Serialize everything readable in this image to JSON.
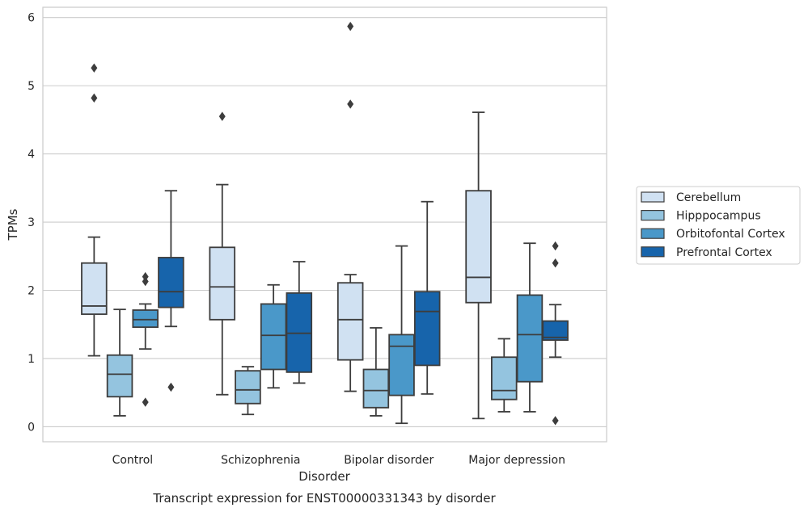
{
  "chart_data": {
    "type": "box",
    "xlabel": "Disorder",
    "ylabel": "TPMs",
    "caption": "Transcript expression for ENST00000331343 by disorder",
    "ylim": [
      -0.22,
      6.15
    ],
    "yticks": [
      0,
      1,
      2,
      3,
      4,
      5,
      6
    ],
    "grid": true,
    "legend_position": "right",
    "categories": [
      "Control",
      "Schizophrenia",
      "Bipolar disorder",
      "Major depression"
    ],
    "series": [
      {
        "name": "Cerebellum",
        "color": "#d0e1f2",
        "boxes": [
          {
            "whisker_low": 1.04,
            "q1": 1.65,
            "median": 1.77,
            "q3": 2.4,
            "whisker_high": 2.78,
            "outliers": [
              4.82,
              5.26
            ]
          },
          {
            "whisker_low": 0.47,
            "q1": 1.57,
            "median": 2.05,
            "q3": 2.63,
            "whisker_high": 3.55,
            "outliers": [
              4.55
            ]
          },
          {
            "whisker_low": 0.52,
            "q1": 0.98,
            "median": 1.57,
            "q3": 2.11,
            "whisker_high": 2.23,
            "outliers": [
              4.73,
              5.87
            ]
          },
          {
            "whisker_low": 0.12,
            "q1": 1.82,
            "median": 2.19,
            "q3": 3.46,
            "whisker_high": 4.61,
            "outliers": []
          }
        ]
      },
      {
        "name": "Hipppocampus",
        "color": "#94c4df",
        "boxes": [
          {
            "whisker_low": 0.16,
            "q1": 0.44,
            "median": 0.77,
            "q3": 1.05,
            "whisker_high": 1.72,
            "outliers": []
          },
          {
            "whisker_low": 0.18,
            "q1": 0.34,
            "median": 0.54,
            "q3": 0.82,
            "whisker_high": 0.88,
            "outliers": []
          },
          {
            "whisker_low": 0.16,
            "q1": 0.28,
            "median": 0.53,
            "q3": 0.84,
            "whisker_high": 1.45,
            "outliers": []
          },
          {
            "whisker_low": 0.22,
            "q1": 0.4,
            "median": 0.53,
            "q3": 1.02,
            "whisker_high": 1.29,
            "outliers": []
          }
        ]
      },
      {
        "name": "Orbitofontal Cortex",
        "color": "#4a98c9",
        "boxes": [
          {
            "whisker_low": 1.14,
            "q1": 1.46,
            "median": 1.57,
            "q3": 1.71,
            "whisker_high": 1.8,
            "outliers": [
              0.36,
              2.13,
              2.2
            ]
          },
          {
            "whisker_low": 0.57,
            "q1": 0.84,
            "median": 1.34,
            "q3": 1.8,
            "whisker_high": 2.08,
            "outliers": []
          },
          {
            "whisker_low": 0.05,
            "q1": 0.46,
            "median": 1.18,
            "q3": 1.35,
            "whisker_high": 2.65,
            "outliers": []
          },
          {
            "whisker_low": 0.22,
            "q1": 0.66,
            "median": 1.35,
            "q3": 1.93,
            "whisker_high": 2.69,
            "outliers": []
          }
        ]
      },
      {
        "name": "Prefrontal Cortex",
        "color": "#1764ab",
        "boxes": [
          {
            "whisker_low": 1.47,
            "q1": 1.75,
            "median": 1.98,
            "q3": 2.48,
            "whisker_high": 3.46,
            "outliers": [
              0.58
            ]
          },
          {
            "whisker_low": 0.64,
            "q1": 0.8,
            "median": 1.37,
            "q3": 1.96,
            "whisker_high": 2.42,
            "outliers": []
          },
          {
            "whisker_low": 0.48,
            "q1": 0.9,
            "median": 1.69,
            "q3": 1.98,
            "whisker_high": 3.3,
            "outliers": []
          },
          {
            "whisker_low": 1.02,
            "q1": 1.27,
            "median": 1.31,
            "q3": 1.55,
            "whisker_high": 1.79,
            "outliers": [
              0.09,
              2.4,
              2.65
            ]
          }
        ]
      }
    ]
  }
}
